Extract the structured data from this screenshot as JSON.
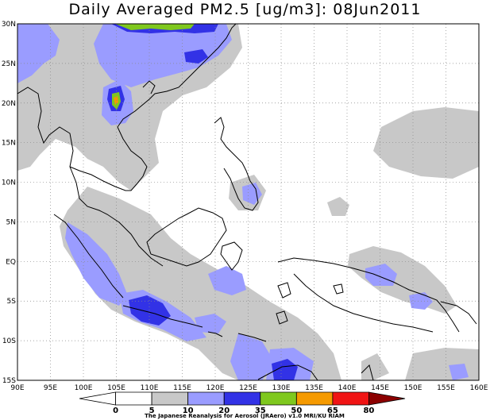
{
  "title": "Daily Averaged PM2.5 [ug/m3]: 08Jun2011",
  "lon_ticks": [
    "90E",
    "95E",
    "100E",
    "105E",
    "110E",
    "115E",
    "120E",
    "125E",
    "130E",
    "135E",
    "140E",
    "145E",
    "150E",
    "155E",
    "160E"
  ],
  "lat_ticks": [
    "30N",
    "25N",
    "20N",
    "15N",
    "10N",
    "5N",
    "EQ",
    "5S",
    "10S",
    "15S"
  ],
  "colorbar": {
    "levels": [
      "0",
      "5",
      "10",
      "20",
      "35",
      "50",
      "65",
      "80"
    ],
    "colors": [
      "#ffffff",
      "#ffffff",
      "#c8c8c8",
      "#9a9cff",
      "#3232e6",
      "#7fc81e",
      "#f59a00",
      "#f01414",
      "#8c0000"
    ]
  },
  "credit": "The Japanese Reanalysis for Aerosol (JRAero) v1.0  MRI/KU  RIAM",
  "chart_data": {
    "type": "heatmap",
    "title": "Daily Averaged PM2.5 [ug/m3]: 08Jun2011",
    "lon_range": [
      90,
      160
    ],
    "lat_range": [
      -15,
      30
    ],
    "grid": "dotted, 5 degree spacing"
  }
}
